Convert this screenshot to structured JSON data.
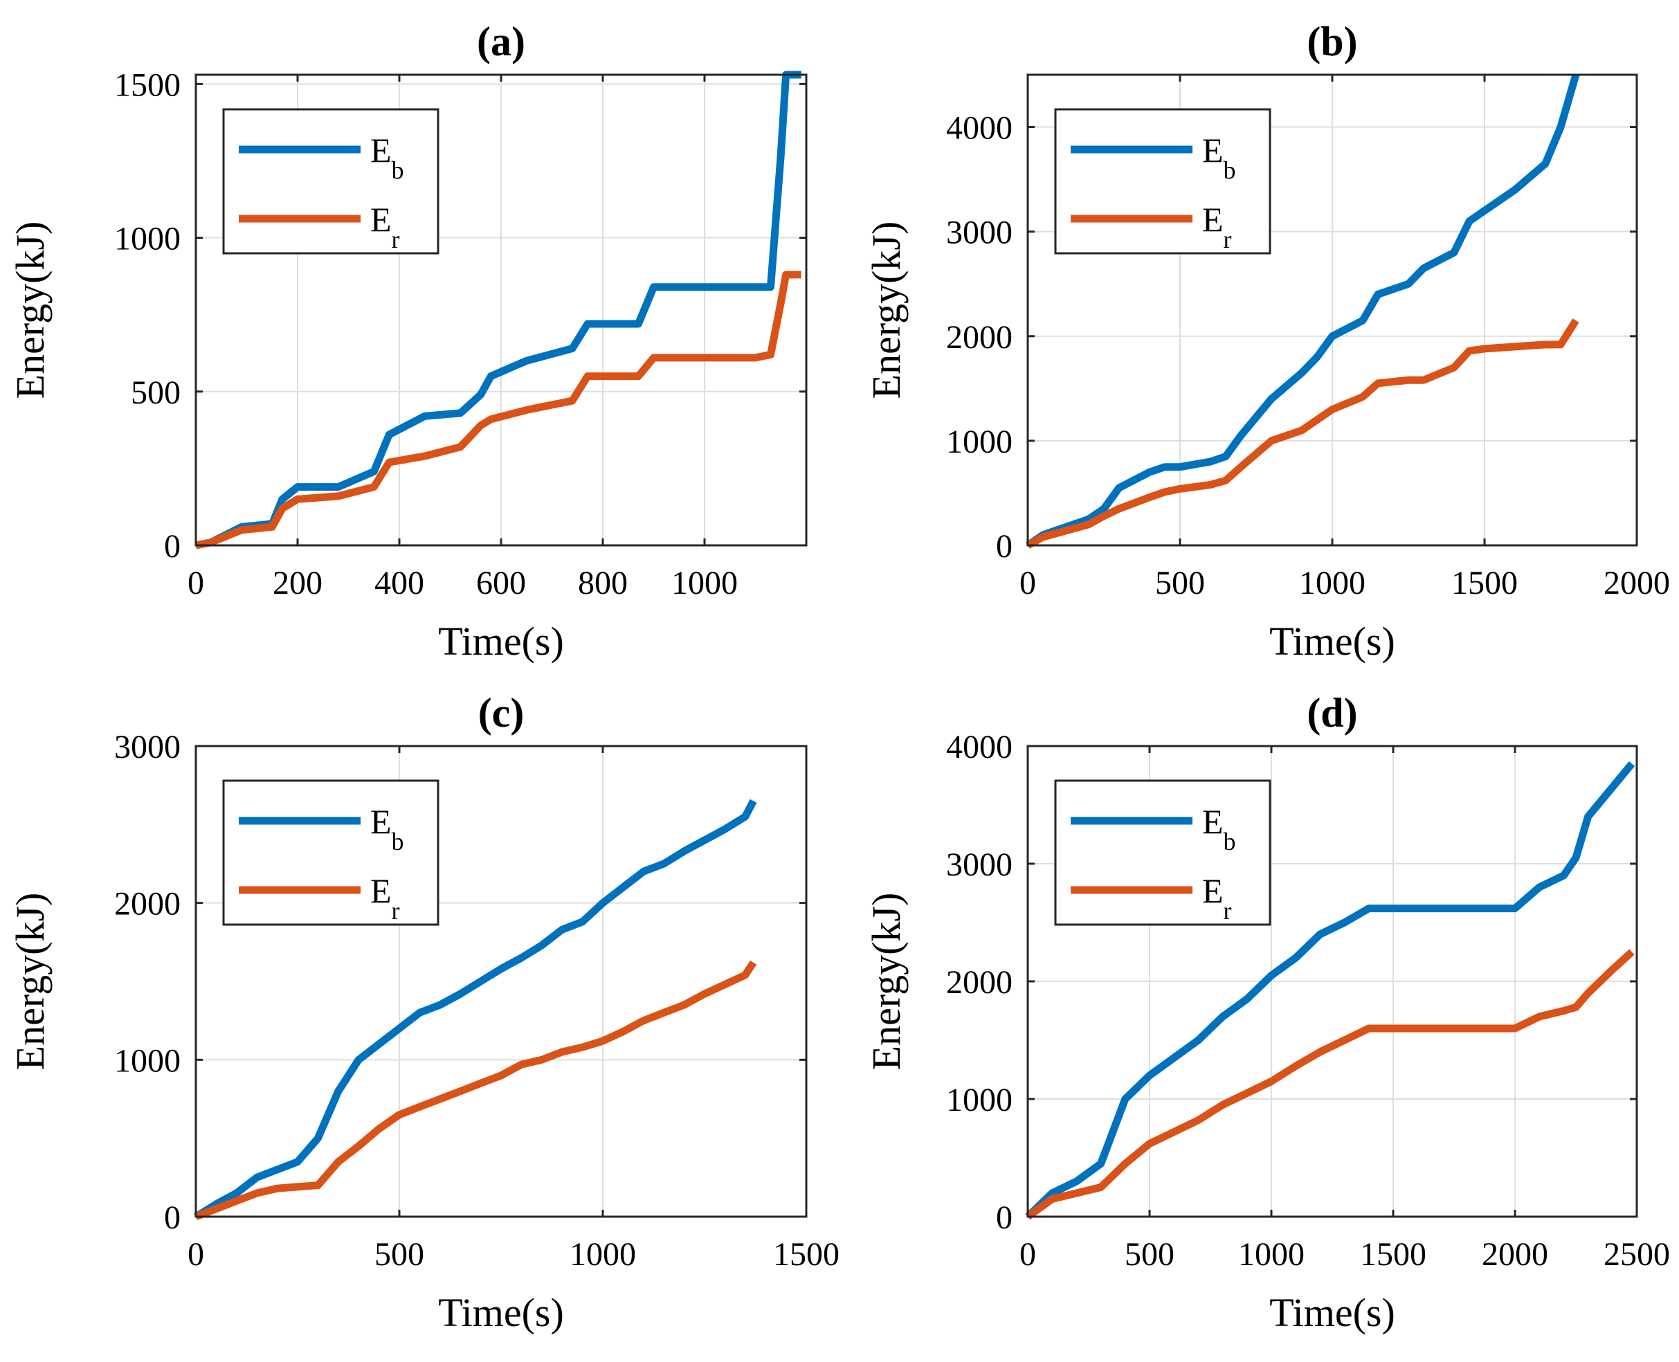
{
  "colors": {
    "Eb": "#0072BD",
    "Er": "#D95319"
  },
  "chart_data": [
    {
      "type": "line",
      "title": "(a)",
      "xlabel": "Time(s)",
      "ylabel": "Energy(kJ)",
      "xlim": [
        0,
        1200
      ],
      "ylim": [
        0,
        1530
      ],
      "xticks": [
        0,
        200,
        400,
        600,
        800,
        1000
      ],
      "yticks": [
        0,
        500,
        1000,
        1500
      ],
      "grid": true,
      "legend_position": "top-left",
      "series": [
        {
          "name": "E_b",
          "legend_main": "E",
          "legend_sub": "b",
          "color": "#0072BD",
          "x": [
            0,
            30,
            90,
            150,
            170,
            200,
            280,
            350,
            380,
            450,
            520,
            560,
            580,
            650,
            740,
            770,
            870,
            900,
            1100,
            1130,
            1150,
            1160,
            1190
          ],
          "y": [
            0,
            10,
            60,
            70,
            150,
            190,
            190,
            240,
            360,
            420,
            430,
            490,
            550,
            600,
            640,
            720,
            720,
            840,
            840,
            840,
            1270,
            1530,
            1530
          ]
        },
        {
          "name": "E_r",
          "legend_main": "E",
          "legend_sub": "r",
          "color": "#D95319",
          "x": [
            0,
            30,
            90,
            150,
            170,
            200,
            280,
            350,
            380,
            450,
            520,
            560,
            580,
            650,
            740,
            770,
            870,
            900,
            1100,
            1130,
            1150,
            1160,
            1190
          ],
          "y": [
            0,
            10,
            50,
            60,
            120,
            150,
            160,
            190,
            270,
            290,
            320,
            390,
            410,
            440,
            470,
            550,
            550,
            610,
            610,
            620,
            790,
            880,
            880
          ]
        }
      ]
    },
    {
      "type": "line",
      "title": "(b)",
      "xlabel": "Time(s)",
      "ylabel": "Energy(kJ)",
      "xlim": [
        0,
        2000
      ],
      "ylim": [
        0,
        4500
      ],
      "xticks": [
        0,
        500,
        1000,
        1500,
        2000
      ],
      "yticks": [
        0,
        1000,
        2000,
        3000,
        4000
      ],
      "grid": true,
      "legend_position": "top-left",
      "series": [
        {
          "name": "E_b",
          "legend_main": "E",
          "legend_sub": "b",
          "color": "#0072BD",
          "x": [
            0,
            50,
            100,
            200,
            250,
            300,
            400,
            450,
            500,
            600,
            650,
            700,
            800,
            900,
            950,
            1000,
            1100,
            1150,
            1250,
            1300,
            1400,
            1450,
            1500,
            1600,
            1700,
            1750,
            1800
          ],
          "y": [
            0,
            100,
            150,
            250,
            350,
            550,
            700,
            750,
            750,
            800,
            850,
            1050,
            1400,
            1650,
            1800,
            2000,
            2150,
            2400,
            2500,
            2650,
            2800,
            3100,
            3200,
            3400,
            3650,
            4000,
            4500
          ]
        },
        {
          "name": "E_r",
          "legend_main": "E",
          "legend_sub": "r",
          "color": "#D95319",
          "x": [
            0,
            50,
            100,
            200,
            250,
            300,
            400,
            450,
            500,
            600,
            650,
            700,
            800,
            900,
            950,
            1000,
            1100,
            1150,
            1250,
            1300,
            1400,
            1450,
            1500,
            1600,
            1700,
            1750,
            1800
          ],
          "y": [
            0,
            80,
            120,
            200,
            280,
            350,
            460,
            510,
            540,
            580,
            620,
            750,
            1000,
            1100,
            1200,
            1300,
            1420,
            1550,
            1580,
            1580,
            1700,
            1860,
            1880,
            1900,
            1920,
            1920,
            2150
          ]
        }
      ]
    },
    {
      "type": "line",
      "title": "(c)",
      "xlabel": "Time(s)",
      "ylabel": "Energy(kJ)",
      "xlim": [
        0,
        1500
      ],
      "ylim": [
        0,
        3000
      ],
      "xticks": [
        0,
        500,
        1000,
        1500
      ],
      "yticks": [
        0,
        1000,
        2000,
        3000
      ],
      "grid": true,
      "legend_position": "top-left",
      "series": [
        {
          "name": "E_b",
          "legend_main": "E",
          "legend_sub": "b",
          "color": "#0072BD",
          "x": [
            0,
            50,
            100,
            150,
            200,
            250,
            300,
            350,
            400,
            450,
            500,
            550,
            600,
            650,
            700,
            750,
            800,
            850,
            900,
            950,
            1000,
            1050,
            1100,
            1150,
            1200,
            1250,
            1300,
            1350,
            1370
          ],
          "y": [
            0,
            80,
            150,
            250,
            300,
            350,
            500,
            800,
            1000,
            1100,
            1200,
            1300,
            1350,
            1420,
            1500,
            1580,
            1650,
            1730,
            1830,
            1880,
            2000,
            2100,
            2200,
            2250,
            2330,
            2400,
            2470,
            2550,
            2650
          ]
        },
        {
          "name": "E_r",
          "legend_main": "E",
          "legend_sub": "r",
          "color": "#D95319",
          "x": [
            0,
            50,
            100,
            150,
            200,
            250,
            300,
            350,
            400,
            450,
            500,
            550,
            600,
            650,
            700,
            750,
            800,
            850,
            900,
            950,
            1000,
            1050,
            1100,
            1150,
            1200,
            1250,
            1300,
            1350,
            1370
          ],
          "y": [
            0,
            50,
            100,
            150,
            180,
            190,
            200,
            350,
            450,
            560,
            650,
            700,
            750,
            800,
            850,
            900,
            970,
            1000,
            1050,
            1080,
            1120,
            1180,
            1250,
            1300,
            1350,
            1420,
            1480,
            1540,
            1620
          ]
        }
      ]
    },
    {
      "type": "line",
      "title": "(d)",
      "xlabel": "Time(s)",
      "ylabel": "Energy(kJ)",
      "xlim": [
        0,
        2500
      ],
      "ylim": [
        0,
        4000
      ],
      "xticks": [
        0,
        500,
        1000,
        1500,
        2000,
        2500
      ],
      "yticks": [
        0,
        1000,
        2000,
        3000,
        4000
      ],
      "grid": true,
      "legend_position": "top-left",
      "series": [
        {
          "name": "E_b",
          "legend_main": "E",
          "legend_sub": "b",
          "color": "#0072BD",
          "x": [
            0,
            100,
            200,
            300,
            400,
            500,
            600,
            700,
            800,
            900,
            1000,
            1100,
            1200,
            1300,
            1400,
            1600,
            1800,
            2000,
            2100,
            2200,
            2250,
            2300,
            2400,
            2480
          ],
          "y": [
            0,
            200,
            300,
            450,
            1000,
            1200,
            1350,
            1500,
            1700,
            1850,
            2050,
            2200,
            2400,
            2500,
            2620,
            2620,
            2620,
            2620,
            2800,
            2900,
            3050,
            3400,
            3650,
            3850
          ]
        },
        {
          "name": "E_r",
          "legend_main": "E",
          "legend_sub": "r",
          "color": "#D95319",
          "x": [
            0,
            100,
            200,
            300,
            400,
            500,
            600,
            700,
            800,
            900,
            1000,
            1100,
            1200,
            1300,
            1400,
            1600,
            1800,
            2000,
            2100,
            2200,
            2250,
            2300,
            2400,
            2480
          ],
          "y": [
            0,
            150,
            200,
            250,
            450,
            620,
            720,
            820,
            950,
            1050,
            1150,
            1280,
            1400,
            1500,
            1600,
            1600,
            1600,
            1600,
            1700,
            1750,
            1780,
            1900,
            2100,
            2250
          ]
        }
      ]
    }
  ]
}
